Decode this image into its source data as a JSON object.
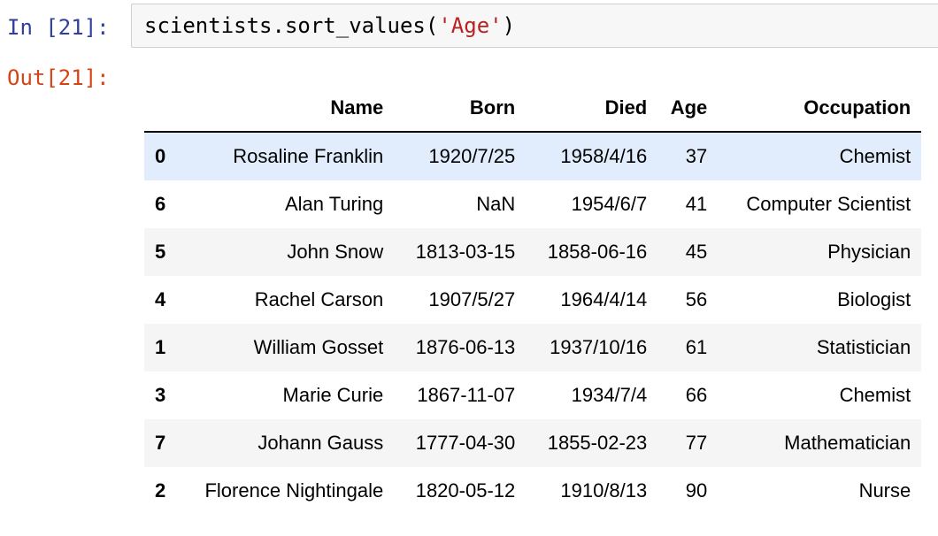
{
  "notebook": {
    "in_prompt": "In [21]:",
    "out_prompt": "Out[21]:",
    "code": {
      "prefix": "scientists.sort_values(",
      "string_arg": "'Age'",
      "suffix": ")"
    }
  },
  "dataframe": {
    "columns": [
      "Name",
      "Born",
      "Died",
      "Age",
      "Occupation"
    ],
    "rows": [
      {
        "index": "0",
        "name": "Rosaline Franklin",
        "born": "1920/7/25",
        "died": "1958/4/16",
        "age": "37",
        "occupation": "Chemist"
      },
      {
        "index": "6",
        "name": "Alan Turing",
        "born": "NaN",
        "died": "1954/6/7",
        "age": "41",
        "occupation": "Computer Scientist"
      },
      {
        "index": "5",
        "name": "John Snow",
        "born": "1813-03-15",
        "died": "1858-06-16",
        "age": "45",
        "occupation": "Physician"
      },
      {
        "index": "4",
        "name": "Rachel Carson",
        "born": "1907/5/27",
        "died": "1964/4/14",
        "age": "56",
        "occupation": "Biologist"
      },
      {
        "index": "1",
        "name": "William Gosset",
        "born": "1876-06-13",
        "died": "1937/10/16",
        "age": "61",
        "occupation": "Statistician"
      },
      {
        "index": "3",
        "name": "Marie Curie",
        "born": "1867-11-07",
        "died": "1934/7/4",
        "age": "66",
        "occupation": "Chemist"
      },
      {
        "index": "7",
        "name": "Johann Gauss",
        "born": "1777-04-30",
        "died": "1855-02-23",
        "age": "77",
        "occupation": "Mathematician"
      },
      {
        "index": "2",
        "name": "Florence Nightingale",
        "born": "1820-05-12",
        "died": "1910/8/13",
        "age": "90",
        "occupation": "Nurse"
      }
    ],
    "highlighted_row_color": "#e1edfd",
    "stripe_color": "#f5f5f5"
  }
}
